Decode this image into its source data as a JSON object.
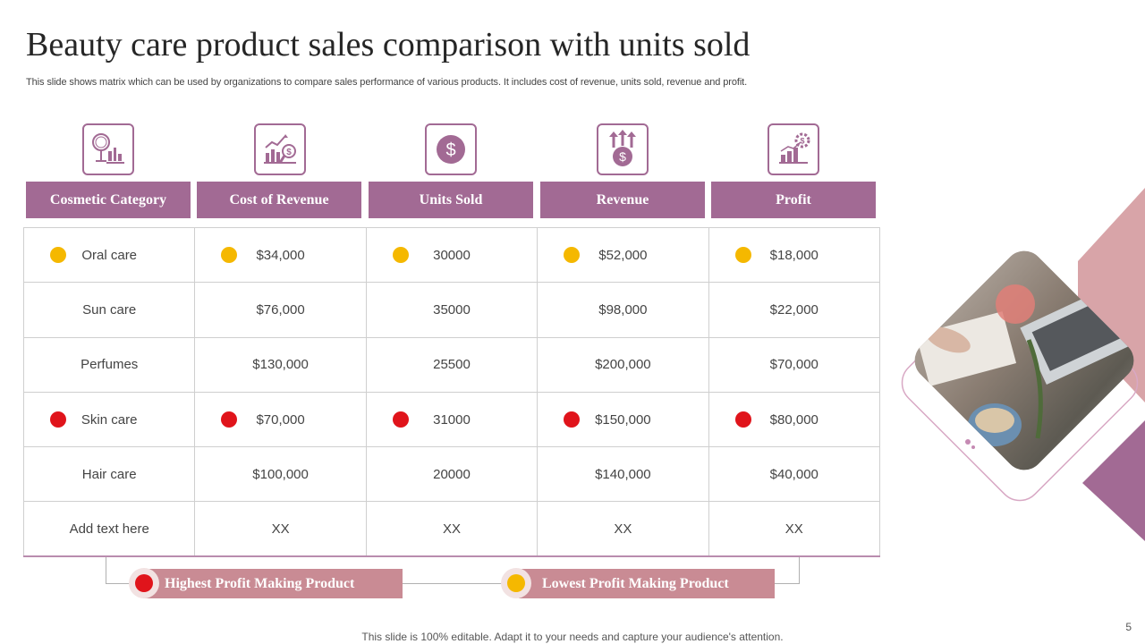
{
  "title": "Beauty care product sales comparison with units sold",
  "subtitle": "This slide shows matrix which can be used by organizations to compare sales performance of various products. It includes cost of revenue, units sold, revenue and profit.",
  "icons": [
    "mirror-cosmetics-icon",
    "chart-analysis-icon",
    "dollar-coin-icon",
    "revenue-growth-icon",
    "profit-chart-icon"
  ],
  "columns": [
    "Cosmetic Category",
    "Cost of Revenue",
    "Units Sold",
    "Revenue",
    "Profit"
  ],
  "rows": [
    {
      "marker": "yellow",
      "cells": [
        "Oral care",
        "$34,000",
        "30000",
        "$52,000",
        "$18,000"
      ]
    },
    {
      "marker": "none",
      "cells": [
        "Sun care",
        "$76,000",
        "35000",
        "$98,000",
        "$22,000"
      ]
    },
    {
      "marker": "none",
      "cells": [
        "Perfumes",
        "$130,000",
        "25500",
        "$200,000",
        "$70,000"
      ]
    },
    {
      "marker": "red",
      "cells": [
        "Skin care",
        "$70,000",
        "31000",
        "$150,000",
        "$80,000"
      ]
    },
    {
      "marker": "none",
      "cells": [
        "Hair care",
        "$100,000",
        "20000",
        "$140,000",
        "$40,000"
      ]
    },
    {
      "marker": "none",
      "cells": [
        "Add text here",
        "XX",
        "XX",
        "XX",
        "XX"
      ]
    }
  ],
  "legend": {
    "highest": "Highest Profit Making Product",
    "lowest": "Lowest Profit Making Product"
  },
  "footer": "This slide is 100% editable. Adapt it to your needs and capture your audience's attention.",
  "page_number": "5",
  "colors": {
    "accent": "#a26a94",
    "legend_bar": "#c98b94",
    "marker_yellow": "#f5b800",
    "marker_red": "#e0141b"
  }
}
